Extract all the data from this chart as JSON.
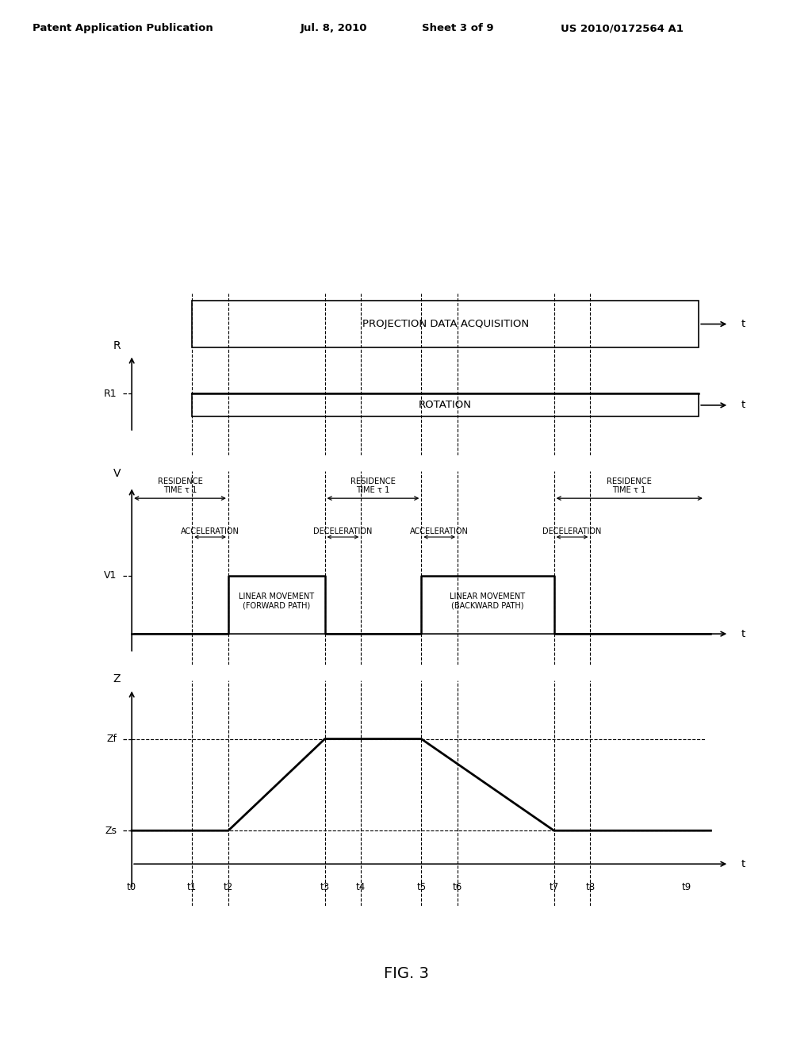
{
  "bg_color": "#ffffff",
  "header_text": "Patent Application Publication",
  "header_date": "Jul. 8, 2010",
  "header_sheet": "Sheet 3 of 9",
  "header_patent": "US 2010/0172564 A1",
  "fig_label": "FIG. 3",
  "t_labels": [
    "t0",
    "t1",
    "t2",
    "t3",
    "t4",
    "t5",
    "t6",
    "t7",
    "t8",
    "t9"
  ],
  "proj_label": "PROJECTION DATA ACQUISITION",
  "rotation_label": "ROTATION",
  "r_axis_label": "R",
  "r1_label": "R1",
  "v_axis_label": "V",
  "v1_label": "V1",
  "z_axis_label": "Z",
  "zf_label": "Zf",
  "zs_label": "Zs",
  "t_axis_label": "t",
  "accel_label": "ACCELERATION",
  "decel_label": "DECELERATION",
  "forward_label": "LINEAR MOVEMENT\n(FORWARD PATH)",
  "backward_label": "LINEAR MOVEMENT\n(BACKWARD PATH)",
  "residence_label": "RESIDENCE\nTIME τ 1"
}
